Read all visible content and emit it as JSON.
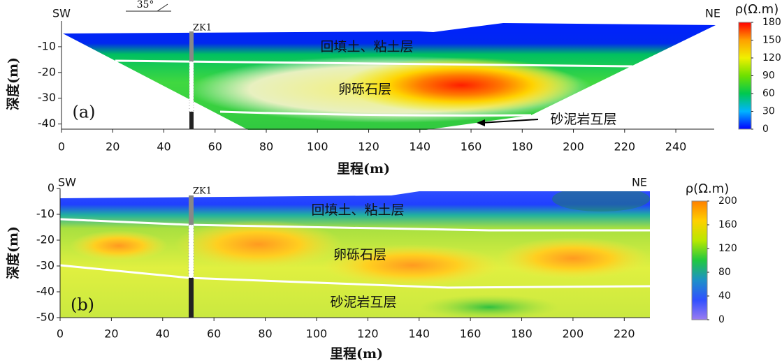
{
  "chart_data": [
    {
      "type": "contour",
      "panel_label": "(a)",
      "x_label": "里程(m)",
      "y_label": "深度(m)",
      "left_label": "SW",
      "right_label": "NE",
      "strike": "35°",
      "borehole": "ZK1",
      "layers": [
        "回填土、粘土层",
        "卵砾石层",
        "砂泥岩互层"
      ],
      "xlim": [
        0,
        255
      ],
      "xticks": [
        0,
        20,
        40,
        60,
        80,
        100,
        120,
        140,
        160,
        180,
        200,
        220,
        240
      ],
      "ylim": [
        -42,
        0
      ],
      "yticks": [
        -10,
        -20,
        -30,
        -40
      ],
      "colorbar": {
        "title": "ρ(Ω.m)",
        "lim": [
          0,
          180
        ],
        "ticks": [
          0,
          30,
          60,
          90,
          120,
          150,
          180
        ],
        "colors": [
          "#0000ff",
          "#00b4ff",
          "#00c850",
          "#6ee000",
          "#f0f000",
          "#ffa000",
          "#ff0000"
        ]
      }
    },
    {
      "type": "contour",
      "panel_label": "(b)",
      "x_label": "里程(m)",
      "y_label": "深度(m)",
      "left_label": "SW",
      "right_label": "NE",
      "borehole": "ZK1",
      "layers": [
        "回填土、粘土层",
        "卵砾石层",
        "砂泥岩互层"
      ],
      "xlim": [
        0,
        230
      ],
      "xticks": [
        0,
        20,
        40,
        60,
        80,
        100,
        120,
        140,
        160,
        180,
        200,
        220
      ],
      "ylim": [
        -50,
        0
      ],
      "yticks": [
        0,
        -10,
        -20,
        -30,
        -40,
        -50
      ],
      "colorbar": {
        "title": "ρ(Ω.m)",
        "lim": [
          0,
          200
        ],
        "ticks": [
          0,
          40,
          80,
          120,
          160,
          200
        ],
        "colors": [
          "#9b7cf0",
          "#3050ff",
          "#1e90c8",
          "#20c840",
          "#b8e800",
          "#ffd000",
          "#ff8000"
        ]
      }
    }
  ]
}
